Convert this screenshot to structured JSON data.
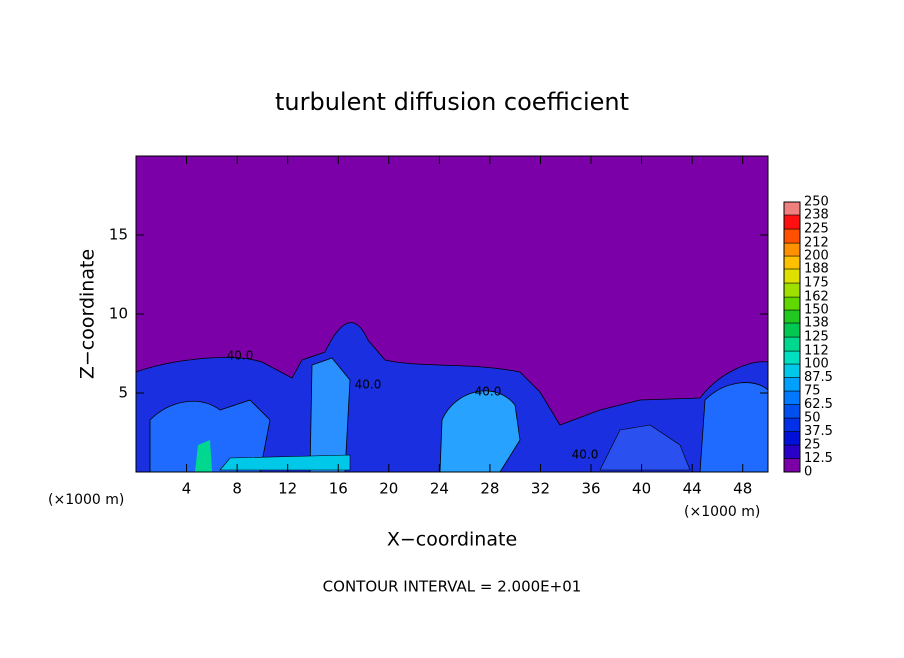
{
  "chart_data": {
    "type": "contour",
    "title": "turbulent diffusion coefficient",
    "x_label": "X−coordinate",
    "y_label": "Z−coordinate",
    "x_unit_labels": [
      "(×1000 m)",
      "(×1000 m)"
    ],
    "footer": "CONTOUR INTERVAL = 2.000E+01",
    "contour_labels": [
      "40.0",
      "40.0",
      "40.0",
      "40.0"
    ],
    "xlim": [
      0,
      50
    ],
    "xticks": [
      4,
      8,
      12,
      16,
      20,
      24,
      28,
      32,
      36,
      40,
      44,
      48
    ],
    "ylim": [
      0,
      20
    ],
    "yticks": [
      5,
      10,
      15
    ],
    "background_color": "#7b00a8",
    "colorbar": {
      "ticks": [
        0,
        12.5,
        25,
        37.5,
        50,
        62.5,
        75,
        87.5,
        100,
        112,
        125,
        138,
        150,
        162,
        175,
        188,
        200,
        212,
        225,
        238,
        250
      ],
      "colors": [
        "#7b00a8",
        "#2a00c8",
        "#0010d8",
        "#0030e8",
        "#0050f0",
        "#0078ff",
        "#00a0ff",
        "#00c8e8",
        "#00e0c0",
        "#00d890",
        "#00c850",
        "#20c820",
        "#60d800",
        "#a0e000",
        "#e0e000",
        "#ffc000",
        "#ff9000",
        "#ff5000",
        "#ff1010",
        "#f08080"
      ]
    }
  }
}
